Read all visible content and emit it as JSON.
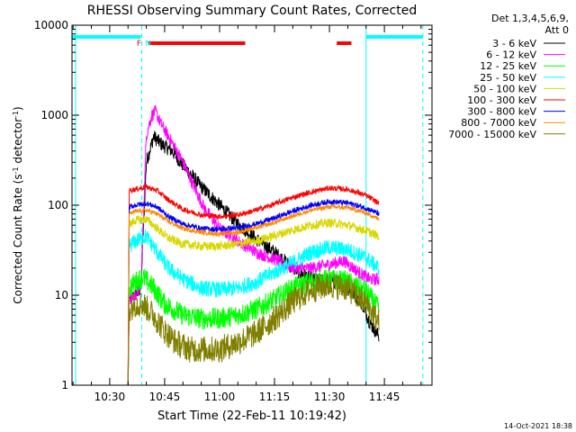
{
  "chart_data": {
    "type": "line",
    "title": "RHESSI Observing Summary Count Rates, Corrected",
    "ylabel_main": "Corrected Count Rate (s",
    "ylabel_exp1": "-1",
    "ylabel_mid": " detector",
    "ylabel_exp2": "-1",
    "ylabel_end": ")",
    "xlabel": "Start Time (22-Feb-11 10:19:42)",
    "footer": "14-Oct-2021 18:38",
    "y_scale": "log",
    "ylim": [
      1,
      10000
    ],
    "xlim": [
      "10:19:42",
      "11:58:00"
    ],
    "y_ticks": [
      {
        "v": 1,
        "label": "1"
      },
      {
        "v": 10,
        "label": "10"
      },
      {
        "v": 100,
        "label": "100"
      },
      {
        "v": 1000,
        "label": "1000"
      },
      {
        "v": 10000,
        "label": "10000"
      }
    ],
    "x_ticks": [
      {
        "t": "10:30",
        "label": "10:30"
      },
      {
        "t": "10:45",
        "label": "10:45"
      },
      {
        "t": "11:00",
        "label": "11:00"
      },
      {
        "t": "11:15",
        "label": "11:15"
      },
      {
        "t": "11:30",
        "label": "11:30"
      },
      {
        "t": "11:45",
        "label": "11:45"
      }
    ],
    "legend": {
      "position": "right",
      "header1": "Det 1,3,4,5,6,9,",
      "header2": "Att 0"
    },
    "flags": {
      "night": [
        {
          "start": "10:19:42",
          "end": "10:38:30"
        },
        {
          "start": "11:40:00",
          "end": "11:55:30"
        }
      ],
      "flare": [
        {
          "start": "10:40:30",
          "end": "11:07:00"
        },
        {
          "start": "11:32:00",
          "end": "11:36:00"
        }
      ],
      "markers": [
        {
          "t": "10:38:00",
          "text": "F",
          "color": "#ff0000"
        },
        {
          "t": "10:40:30",
          "text": "N",
          "color": "#00ffff"
        }
      ]
    },
    "vlines": [
      {
        "t": "10:20:42",
        "style": "solid",
        "color": "#00ffff"
      },
      {
        "t": "10:38:45",
        "style": "dashed",
        "color": "#00ffff"
      },
      {
        "t": "11:40:00",
        "style": "solid",
        "color": "#00ffff"
      },
      {
        "t": "11:55:30",
        "style": "dashed",
        "color": "#00ffff"
      }
    ],
    "data_range": [
      "10:35:00",
      "11:43:30"
    ],
    "series": [
      {
        "name": "3 - 6 keV",
        "color": "#000000",
        "noise": 0.08,
        "points": [
          [
            "10:35:00",
            1
          ],
          [
            "10:35:20",
            9
          ],
          [
            "10:37:00",
            10
          ],
          [
            "10:38:30",
            12
          ],
          [
            "10:40:00",
            300
          ],
          [
            "10:42:00",
            580
          ],
          [
            "10:44:00",
            480
          ],
          [
            "10:47:00",
            400
          ],
          [
            "10:50:00",
            280
          ],
          [
            "10:55:00",
            160
          ],
          [
            "11:00:00",
            100
          ],
          [
            "11:05:00",
            62
          ],
          [
            "11:10:00",
            42
          ],
          [
            "11:15:00",
            30
          ],
          [
            "11:20:00",
            20
          ],
          [
            "11:25:00",
            15
          ],
          [
            "11:30:00",
            14
          ],
          [
            "11:33:00",
            14
          ],
          [
            "11:36:00",
            11
          ],
          [
            "11:39:00",
            8
          ],
          [
            "11:41:00",
            5
          ],
          [
            "11:43:30",
            3.5
          ]
        ]
      },
      {
        "name": "6 - 12 keV",
        "color": "#ff00ff",
        "noise": 0.07,
        "points": [
          [
            "10:35:00",
            1
          ],
          [
            "10:35:20",
            9
          ],
          [
            "10:37:00",
            10
          ],
          [
            "10:38:30",
            12
          ],
          [
            "10:40:00",
            600
          ],
          [
            "10:41:30",
            1000
          ],
          [
            "10:42:30",
            1100
          ],
          [
            "10:44:00",
            800
          ],
          [
            "10:47:00",
            500
          ],
          [
            "10:50:00",
            300
          ],
          [
            "10:53:00",
            160
          ],
          [
            "10:56:00",
            90
          ],
          [
            "11:00:00",
            55
          ],
          [
            "11:05:00",
            40
          ],
          [
            "11:10:00",
            30
          ],
          [
            "11:15:00",
            25
          ],
          [
            "11:20:00",
            20
          ],
          [
            "11:25:00",
            20
          ],
          [
            "11:30:00",
            22
          ],
          [
            "11:34:00",
            24
          ],
          [
            "11:38:00",
            18
          ],
          [
            "11:41:00",
            15
          ],
          [
            "11:43:30",
            15
          ]
        ]
      },
      {
        "name": "12 - 25 keV",
        "color": "#00ff00",
        "noise": 0.12,
        "points": [
          [
            "10:35:00",
            1
          ],
          [
            "10:35:20",
            12
          ],
          [
            "10:37:00",
            14
          ],
          [
            "10:39:00",
            16
          ],
          [
            "10:42:00",
            12
          ],
          [
            "10:45:00",
            8
          ],
          [
            "10:50:00",
            6
          ],
          [
            "10:55:00",
            5.5
          ],
          [
            "11:00:00",
            5.5
          ],
          [
            "11:05:00",
            6
          ],
          [
            "11:10:00",
            7
          ],
          [
            "11:15:00",
            9
          ],
          [
            "11:20:00",
            12
          ],
          [
            "11:25:00",
            14
          ],
          [
            "11:30:00",
            15
          ],
          [
            "11:35:00",
            14
          ],
          [
            "11:40:00",
            11
          ],
          [
            "11:43:30",
            7
          ]
        ]
      },
      {
        "name": "25 - 50 keV",
        "color": "#00ffff",
        "noise": 0.09,
        "points": [
          [
            "10:35:00",
            1
          ],
          [
            "10:35:20",
            35
          ],
          [
            "10:37:00",
            40
          ],
          [
            "10:40:00",
            45
          ],
          [
            "10:43:00",
            30
          ],
          [
            "10:46:00",
            20
          ],
          [
            "10:50:00",
            15
          ],
          [
            "10:55:00",
            12
          ],
          [
            "11:00:00",
            11.5
          ],
          [
            "11:05:00",
            12
          ],
          [
            "11:10:00",
            14
          ],
          [
            "11:15:00",
            18
          ],
          [
            "11:20:00",
            23
          ],
          [
            "11:25:00",
            30
          ],
          [
            "11:30:00",
            34
          ],
          [
            "11:35:00",
            32
          ],
          [
            "11:40:00",
            26
          ],
          [
            "11:43:30",
            20
          ]
        ]
      },
      {
        "name": "50 - 100 keV",
        "color": "#d8d800",
        "noise": 0.05,
        "points": [
          [
            "10:35:00",
            1
          ],
          [
            "10:35:20",
            60
          ],
          [
            "10:37:00",
            68
          ],
          [
            "10:40:00",
            70
          ],
          [
            "10:43:00",
            55
          ],
          [
            "10:46:00",
            43
          ],
          [
            "10:50:00",
            37
          ],
          [
            "10:55:00",
            35
          ],
          [
            "11:00:00",
            35
          ],
          [
            "11:05:00",
            37
          ],
          [
            "11:10:00",
            40
          ],
          [
            "11:15:00",
            46
          ],
          [
            "11:20:00",
            53
          ],
          [
            "11:25:00",
            60
          ],
          [
            "11:30:00",
            64
          ],
          [
            "11:35:00",
            60
          ],
          [
            "11:40:00",
            52
          ],
          [
            "11:43:30",
            45
          ]
        ]
      },
      {
        "name": "100 - 300 keV",
        "color": "#ff0000",
        "noise": 0.03,
        "points": [
          [
            "10:35:00",
            1
          ],
          [
            "10:35:20",
            145
          ],
          [
            "10:37:00",
            150
          ],
          [
            "10:40:00",
            160
          ],
          [
            "10:43:00",
            145
          ],
          [
            "10:46:00",
            115
          ],
          [
            "10:50:00",
            90
          ],
          [
            "10:55:00",
            78
          ],
          [
            "11:00:00",
            75
          ],
          [
            "11:05:00",
            78
          ],
          [
            "11:10:00",
            88
          ],
          [
            "11:15:00",
            103
          ],
          [
            "11:20:00",
            122
          ],
          [
            "11:25:00",
            140
          ],
          [
            "11:30:00",
            155
          ],
          [
            "11:35:00",
            150
          ],
          [
            "11:40:00",
            128
          ],
          [
            "11:43:30",
            105
          ]
        ]
      },
      {
        "name": "300 - 800 keV",
        "color": "#0000ff",
        "noise": 0.03,
        "points": [
          [
            "10:35:00",
            1
          ],
          [
            "10:35:20",
            95
          ],
          [
            "10:37:00",
            100
          ],
          [
            "10:40:00",
            105
          ],
          [
            "10:43:00",
            95
          ],
          [
            "10:46:00",
            75
          ],
          [
            "10:50:00",
            62
          ],
          [
            "10:55:00",
            55
          ],
          [
            "11:00:00",
            54
          ],
          [
            "11:05:00",
            56
          ],
          [
            "11:10:00",
            62
          ],
          [
            "11:15:00",
            72
          ],
          [
            "11:20:00",
            86
          ],
          [
            "11:25:00",
            100
          ],
          [
            "11:30:00",
            110
          ],
          [
            "11:35:00",
            106
          ],
          [
            "11:40:00",
            93
          ],
          [
            "11:43:30",
            80
          ]
        ]
      },
      {
        "name": "800 - 7000 keV",
        "color": "#ff8800",
        "noise": 0.025,
        "points": [
          [
            "10:35:00",
            1
          ],
          [
            "10:35:20",
            80
          ],
          [
            "10:37:00",
            85
          ],
          [
            "10:40:00",
            88
          ],
          [
            "10:43:00",
            80
          ],
          [
            "10:46:00",
            66
          ],
          [
            "10:50:00",
            55
          ],
          [
            "10:55:00",
            50
          ],
          [
            "11:00:00",
            48
          ],
          [
            "11:05:00",
            50
          ],
          [
            "11:10:00",
            56
          ],
          [
            "11:15:00",
            64
          ],
          [
            "11:20:00",
            76
          ],
          [
            "11:25:00",
            88
          ],
          [
            "11:30:00",
            96
          ],
          [
            "11:35:00",
            94
          ],
          [
            "11:40:00",
            82
          ],
          [
            "11:43:30",
            70
          ]
        ]
      },
      {
        "name": "7000 - 15000 keV",
        "color": "#808000",
        "noise": 0.15,
        "points": [
          [
            "10:35:00",
            1
          ],
          [
            "10:35:20",
            7
          ],
          [
            "10:37:00",
            8
          ],
          [
            "10:39:00",
            8
          ],
          [
            "10:42:00",
            6
          ],
          [
            "10:45:00",
            4
          ],
          [
            "10:48:00",
            3
          ],
          [
            "10:52:00",
            2.5
          ],
          [
            "11:00:00",
            2.5
          ],
          [
            "11:05:00",
            3
          ],
          [
            "11:10:00",
            3.8
          ],
          [
            "11:15:00",
            5.5
          ],
          [
            "11:20:00",
            8.5
          ],
          [
            "11:25:00",
            11.5
          ],
          [
            "11:30:00",
            13
          ],
          [
            "11:35:00",
            12
          ],
          [
            "11:40:00",
            8
          ],
          [
            "11:43:30",
            5
          ]
        ]
      }
    ]
  }
}
